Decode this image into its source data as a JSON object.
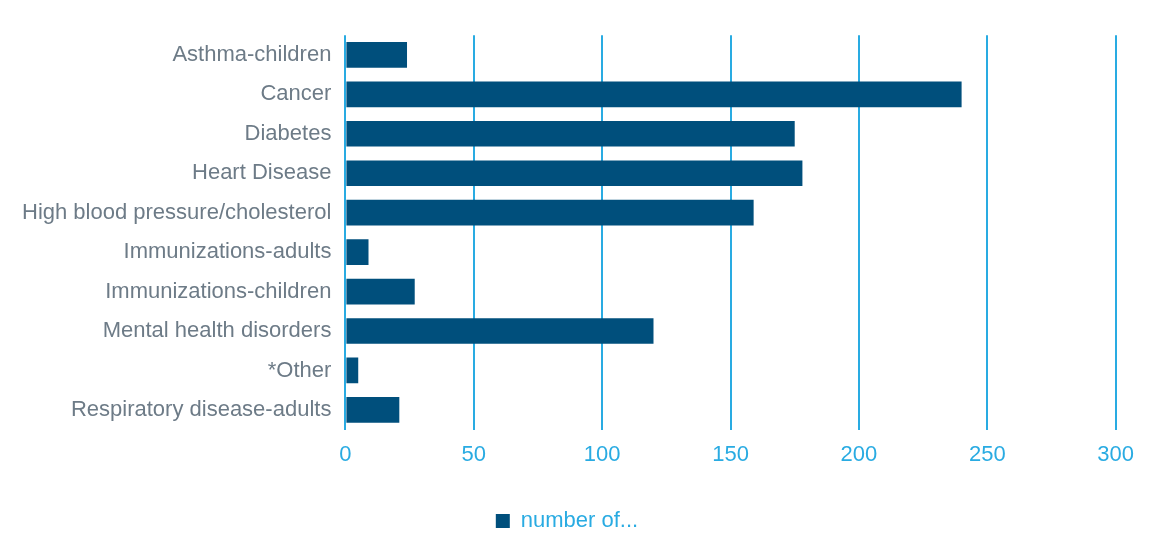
{
  "chart_data": {
    "type": "bar",
    "orientation": "horizontal",
    "categories": [
      "Asthma-children",
      "Cancer",
      "Diabetes",
      "Heart Disease",
      "High blood pressure/cholesterol",
      "Immunizations-adults",
      "Immunizations-children",
      "Mental health disorders",
      "*Other",
      "Respiratory disease-adults"
    ],
    "series": [
      {
        "name": "number of...",
        "color": "#004f7c",
        "values": [
          24,
          240,
          175,
          178,
          159,
          9,
          27,
          120,
          5,
          21
        ]
      }
    ],
    "xlim": [
      0,
      300
    ],
    "xticks": [
      0,
      50,
      100,
      150,
      200,
      250,
      300
    ],
    "grid": "x",
    "legend": "bottom"
  }
}
